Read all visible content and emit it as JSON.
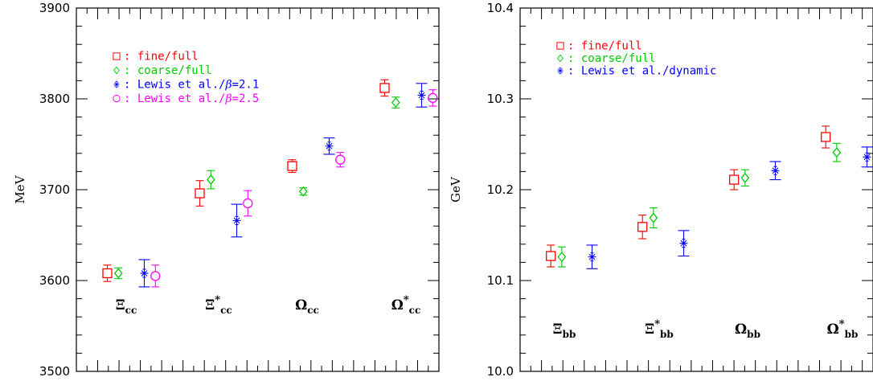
{
  "chart_data": [
    {
      "type": "scatter",
      "ylabel": "MeV",
      "xlabel": "",
      "ylim": [
        3500,
        3900
      ],
      "yticks": [
        3500,
        3600,
        3700,
        3800,
        3900
      ],
      "ytick_labels": [
        "3500",
        "3600",
        "3700",
        "3800",
        "3900"
      ],
      "categories": [
        {
          "symbol": "Ξ",
          "star": false,
          "sub": "cc"
        },
        {
          "symbol": "Ξ",
          "star": true,
          "sub": "cc"
        },
        {
          "symbol": "Ω",
          "star": false,
          "sub": "cc"
        },
        {
          "symbol": "Ω",
          "star": true,
          "sub": "cc"
        }
      ],
      "series": [
        {
          "name": ": fine/full",
          "color": "#ff0000",
          "marker": "square",
          "points": [
            {
              "x": 0.7,
              "y": 3608,
              "err": 9
            },
            {
              "x": 1.7,
              "y": 3696,
              "err": 14
            },
            {
              "x": 2.7,
              "y": 3726,
              "err": 7
            },
            {
              "x": 3.7,
              "y": 3812,
              "err": 9
            }
          ]
        },
        {
          "name": ": coarse/full",
          "color": "#00cc00",
          "marker": "diamond",
          "points": [
            {
              "x": 0.82,
              "y": 3608,
              "err": 6
            },
            {
              "x": 1.82,
              "y": 3711,
              "err": 10
            },
            {
              "x": 2.82,
              "y": 3698,
              "err": 4
            },
            {
              "x": 3.82,
              "y": 3796,
              "err": 6
            }
          ]
        },
        {
          "name": ": Lewis et al./β=2.1",
          "color": "#0000ff",
          "marker": "burst",
          "points": [
            {
              "x": 1.1,
              "y": 3608,
              "err": 15
            },
            {
              "x": 2.1,
              "y": 3666,
              "err": 18
            },
            {
              "x": 3.1,
              "y": 3748,
              "err": 9
            },
            {
              "x": 4.1,
              "y": 3804,
              "err": 13
            }
          ]
        },
        {
          "name": ": Lewis et al./β=2.5",
          "color": "#ff00ff",
          "marker": "circle",
          "points": [
            {
              "x": 1.22,
              "y": 3605,
              "err": 12
            },
            {
              "x": 2.22,
              "y": 3685,
              "err": 14
            },
            {
              "x": 3.22,
              "y": 3733,
              "err": 8
            },
            {
              "x": 4.22,
              "y": 3801,
              "err": 9
            }
          ]
        }
      ]
    },
    {
      "type": "scatter",
      "ylabel": "GeV",
      "xlabel": "",
      "ylim": [
        10.0,
        10.4
      ],
      "yticks": [
        10.0,
        10.1,
        10.2,
        10.3,
        10.4
      ],
      "ytick_labels": [
        "10.0",
        "10.1",
        "10.2",
        "10.3",
        "10.4"
      ],
      "categories": [
        {
          "symbol": "Ξ",
          "star": false,
          "sub": "bb"
        },
        {
          "symbol": "Ξ",
          "star": true,
          "sub": "bb"
        },
        {
          "symbol": "Ω",
          "star": false,
          "sub": "bb"
        },
        {
          "symbol": "Ω",
          "star": true,
          "sub": "bb"
        }
      ],
      "series": [
        {
          "name": ": fine/full",
          "color": "#ff0000",
          "marker": "square",
          "points": [
            {
              "x": 0.7,
              "y": 10.127,
              "err": 0.012
            },
            {
              "x": 1.7,
              "y": 10.159,
              "err": 0.013
            },
            {
              "x": 2.7,
              "y": 10.211,
              "err": 0.011
            },
            {
              "x": 3.7,
              "y": 10.258,
              "err": 0.012
            }
          ]
        },
        {
          "name": ": coarse/full",
          "color": "#00cc00",
          "marker": "diamond",
          "points": [
            {
              "x": 0.82,
              "y": 10.126,
              "err": 0.011
            },
            {
              "x": 1.82,
              "y": 10.169,
              "err": 0.011
            },
            {
              "x": 2.82,
              "y": 10.213,
              "err": 0.009
            },
            {
              "x": 3.82,
              "y": 10.241,
              "err": 0.01
            }
          ]
        },
        {
          "name": ": Lewis et al./dynamic",
          "color": "#0000ff",
          "marker": "burst",
          "points": [
            {
              "x": 1.15,
              "y": 10.126,
              "err": 0.013
            },
            {
              "x": 2.15,
              "y": 10.141,
              "err": 0.014
            },
            {
              "x": 3.15,
              "y": 10.221,
              "err": 0.01
            },
            {
              "x": 4.15,
              "y": 10.236,
              "err": 0.011
            }
          ]
        }
      ]
    }
  ]
}
